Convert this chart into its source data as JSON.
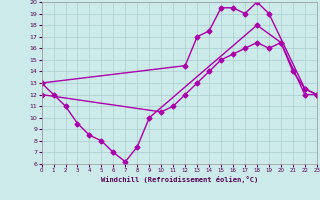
{
  "background_color": "#cdeaea",
  "grid_color": "#aacccc",
  "line_color": "#aa00aa",
  "marker": "D",
  "markersize": 2.5,
  "linewidth": 1.0,
  "xlabel": "Windchill (Refroidissement éolien,°C)",
  "xlim": [
    0,
    23
  ],
  "ylim": [
    6,
    20
  ],
  "yticks": [
    6,
    7,
    8,
    9,
    10,
    11,
    12,
    13,
    14,
    15,
    16,
    17,
    18,
    19,
    20
  ],
  "xticks": [
    0,
    1,
    2,
    3,
    4,
    5,
    6,
    7,
    8,
    9,
    10,
    11,
    12,
    13,
    14,
    15,
    16,
    17,
    18,
    19,
    20,
    21,
    22,
    23
  ],
  "line1_x": [
    0,
    1,
    2,
    3,
    4,
    5,
    6,
    7,
    8,
    9,
    18,
    20,
    21,
    22,
    23
  ],
  "line1_y": [
    13,
    12,
    11,
    9.5,
    8.5,
    8.0,
    7.0,
    6.2,
    7.5,
    10.0,
    18.0,
    16.5,
    14.0,
    12.5,
    12.0
  ],
  "line2_x": [
    0,
    12,
    13,
    14,
    15,
    16,
    17,
    18,
    19,
    22,
    23
  ],
  "line2_y": [
    13.0,
    14.5,
    17.0,
    17.5,
    19.5,
    19.5,
    19.0,
    20.0,
    19.0,
    12.5,
    12.0
  ],
  "line3_x": [
    0,
    10,
    11,
    12,
    13,
    14,
    15,
    16,
    17,
    18,
    19,
    20,
    22,
    23
  ],
  "line3_y": [
    12.0,
    10.5,
    11.0,
    12.0,
    13.0,
    14.0,
    15.0,
    15.5,
    16.0,
    16.5,
    16.0,
    16.5,
    12.0,
    12.0
  ]
}
